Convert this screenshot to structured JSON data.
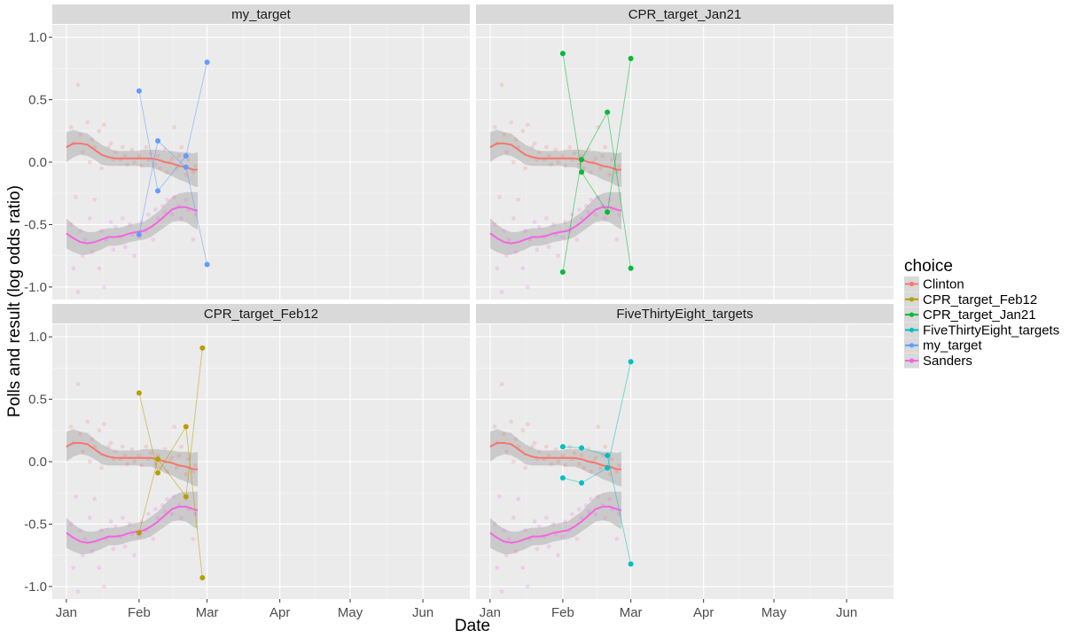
{
  "chart_data": {
    "type": "scatter",
    "xlabel": "Date",
    "ylabel": "Polls and result (log odds ratio)",
    "x_ticks": [
      "Jan",
      "Feb",
      "Mar",
      "Apr",
      "May",
      "Jun"
    ],
    "x_tick_dates": [
      "2016-01-01",
      "2016-02-01",
      "2016-03-01",
      "2016-04-01",
      "2016-05-01",
      "2016-06-01"
    ],
    "xlim": [
      "2015-12-26",
      "2016-06-21"
    ],
    "y_ticks": [
      "1.0",
      "0.5",
      "0.0",
      "-0.5",
      "-1.0"
    ],
    "ylim": [
      -1.1,
      1.1
    ],
    "grid": true,
    "legend": {
      "title": "choice",
      "position": "right",
      "entries": [
        {
          "name": "Clinton",
          "color": "#F8766D"
        },
        {
          "name": "CPR_target_Feb12",
          "color": "#B79F00"
        },
        {
          "name": "CPR_target_Jan21",
          "color": "#00BA38"
        },
        {
          "name": "FiveThirtyEight_targets",
          "color": "#00BFC4"
        },
        {
          "name": "my_target",
          "color": "#619CFF"
        },
        {
          "name": "Sanders",
          "color": "#F564E3"
        }
      ]
    },
    "polls": {
      "clinton_points": [
        [
          "2016-01-03",
          0.28
        ],
        [
          "2016-01-04",
          0.15
        ],
        [
          "2016-01-06",
          0.62
        ],
        [
          "2016-01-07",
          0.22
        ],
        [
          "2016-01-08",
          0.08
        ],
        [
          "2016-01-10",
          0.32
        ],
        [
          "2016-01-11",
          0.0
        ],
        [
          "2016-01-12",
          0.18
        ],
        [
          "2016-01-13",
          0.12
        ],
        [
          "2016-01-15",
          0.25
        ],
        [
          "2016-01-16",
          -0.05
        ],
        [
          "2016-01-17",
          0.3
        ],
        [
          "2016-01-19",
          0.12
        ],
        [
          "2016-01-20",
          0.15
        ],
        [
          "2016-01-21",
          0.02
        ],
        [
          "2016-01-22",
          0.08
        ],
        [
          "2016-01-24",
          0.02
        ],
        [
          "2016-01-25",
          0.12
        ],
        [
          "2016-01-26",
          0.05
        ],
        [
          "2016-01-27",
          -0.02
        ],
        [
          "2016-01-29",
          0.1
        ],
        [
          "2016-01-30",
          0.0
        ],
        [
          "2016-02-01",
          0.05
        ],
        [
          "2016-02-02",
          -0.03
        ],
        [
          "2016-02-04",
          0.12
        ],
        [
          "2016-02-05",
          0.02
        ],
        [
          "2016-02-06",
          0.07
        ],
        [
          "2016-02-08",
          -0.02
        ],
        [
          "2016-02-09",
          0.05
        ],
        [
          "2016-02-10",
          -0.05
        ],
        [
          "2016-02-12",
          0.1
        ],
        [
          "2016-02-13",
          -0.08
        ],
        [
          "2016-02-14",
          0.0
        ],
        [
          "2016-02-15",
          0.03
        ],
        [
          "2016-02-16",
          0.28
        ],
        [
          "2016-02-17",
          -0.05
        ],
        [
          "2016-02-18",
          0.05
        ],
        [
          "2016-02-19",
          0.12
        ],
        [
          "2016-02-21",
          -0.1
        ],
        [
          "2016-02-22",
          0.02
        ],
        [
          "2016-02-24",
          -0.08
        ],
        [
          "2016-02-25",
          -0.03
        ]
      ],
      "sanders_points": [
        [
          "2016-01-03",
          -0.5
        ],
        [
          "2016-01-04",
          -0.85
        ],
        [
          "2016-01-05",
          -0.28
        ],
        [
          "2016-01-06",
          -1.04
        ],
        [
          "2016-01-07",
          -0.55
        ],
        [
          "2016-01-08",
          -0.75
        ],
        [
          "2016-01-09",
          -0.62
        ],
        [
          "2016-01-11",
          -0.45
        ],
        [
          "2016-01-12",
          -0.72
        ],
        [
          "2016-01-13",
          -0.3
        ],
        [
          "2016-01-15",
          -0.85
        ],
        [
          "2016-01-16",
          -0.55
        ],
        [
          "2016-01-17",
          -1.0
        ],
        [
          "2016-01-18",
          -0.62
        ],
        [
          "2016-01-20",
          -0.48
        ],
        [
          "2016-01-21",
          -0.7
        ],
        [
          "2016-01-22",
          -0.52
        ],
        [
          "2016-01-24",
          -0.6
        ],
        [
          "2016-01-25",
          -0.45
        ],
        [
          "2016-01-26",
          -0.68
        ],
        [
          "2016-01-28",
          -0.5
        ],
        [
          "2016-01-29",
          -0.58
        ],
        [
          "2016-01-30",
          -0.75
        ],
        [
          "2016-02-01",
          -0.6
        ],
        [
          "2016-02-02",
          -0.48
        ],
        [
          "2016-02-04",
          -0.55
        ],
        [
          "2016-02-05",
          -0.42
        ],
        [
          "2016-02-07",
          -0.62
        ],
        [
          "2016-02-08",
          -0.38
        ],
        [
          "2016-02-09",
          -0.45
        ],
        [
          "2016-02-11",
          -0.35
        ],
        [
          "2016-02-12",
          -0.4
        ],
        [
          "2016-02-13",
          -0.3
        ],
        [
          "2016-02-15",
          -0.42
        ],
        [
          "2016-02-16",
          -0.28
        ],
        [
          "2016-02-18",
          -0.35
        ],
        [
          "2016-02-19",
          -0.45
        ],
        [
          "2016-02-21",
          -0.3
        ],
        [
          "2016-02-22",
          -0.38
        ],
        [
          "2016-02-24",
          -0.62
        ],
        [
          "2016-02-25",
          -0.42
        ]
      ],
      "clinton_smooth": {
        "x": [
          "2016-01-01",
          "2016-01-04",
          "2016-01-07",
          "2016-01-10",
          "2016-01-13",
          "2016-01-16",
          "2016-01-19",
          "2016-01-22",
          "2016-01-25",
          "2016-01-28",
          "2016-01-31",
          "2016-02-03",
          "2016-02-06",
          "2016-02-09",
          "2016-02-12",
          "2016-02-15",
          "2016-02-18",
          "2016-02-21",
          "2016-02-24",
          "2016-02-26"
        ],
        "y": [
          0.12,
          0.15,
          0.15,
          0.14,
          0.1,
          0.06,
          0.04,
          0.03,
          0.03,
          0.03,
          0.03,
          0.03,
          0.03,
          0.02,
          0.0,
          -0.01,
          -0.03,
          -0.04,
          -0.06,
          -0.06
        ],
        "se": [
          0.12,
          0.11,
          0.09,
          0.09,
          0.08,
          0.08,
          0.07,
          0.06,
          0.06,
          0.06,
          0.06,
          0.07,
          0.07,
          0.08,
          0.09,
          0.1,
          0.11,
          0.12,
          0.13,
          0.14
        ]
      },
      "sanders_smooth": {
        "x": [
          "2016-01-01",
          "2016-01-04",
          "2016-01-07",
          "2016-01-10",
          "2016-01-13",
          "2016-01-16",
          "2016-01-19",
          "2016-01-22",
          "2016-01-25",
          "2016-01-28",
          "2016-01-31",
          "2016-02-03",
          "2016-02-06",
          "2016-02-09",
          "2016-02-12",
          "2016-02-15",
          "2016-02-18",
          "2016-02-21",
          "2016-02-24",
          "2016-02-26"
        ],
        "y": [
          -0.57,
          -0.61,
          -0.64,
          -0.65,
          -0.64,
          -0.62,
          -0.6,
          -0.6,
          -0.59,
          -0.57,
          -0.56,
          -0.55,
          -0.52,
          -0.48,
          -0.43,
          -0.38,
          -0.36,
          -0.36,
          -0.38,
          -0.39
        ],
        "se": [
          0.12,
          0.11,
          0.1,
          0.09,
          0.08,
          0.08,
          0.07,
          0.07,
          0.07,
          0.07,
          0.07,
          0.07,
          0.08,
          0.08,
          0.09,
          0.1,
          0.11,
          0.12,
          0.14,
          0.15
        ]
      }
    },
    "panels": [
      {
        "title": "my_target",
        "color": "#619CFF",
        "clinton": [
          [
            "2016-02-01",
            -0.58
          ],
          [
            "2016-02-09",
            0.17
          ],
          [
            "2016-02-21",
            -0.04
          ],
          [
            "2016-03-01",
            -0.82
          ]
        ],
        "sanders": [
          [
            "2016-02-01",
            0.57
          ],
          [
            "2016-02-09",
            -0.23
          ],
          [
            "2016-02-21",
            0.05
          ],
          [
            "2016-03-01",
            0.8
          ]
        ]
      },
      {
        "title": "CPR_target_Jan21",
        "color": "#00BA38",
        "clinton": [
          [
            "2016-02-01",
            0.87
          ],
          [
            "2016-02-09",
            -0.08
          ],
          [
            "2016-02-20",
            -0.4
          ],
          [
            "2016-03-01",
            0.83
          ]
        ],
        "sanders": [
          [
            "2016-02-01",
            -0.88
          ],
          [
            "2016-02-09",
            0.02
          ],
          [
            "2016-02-20",
            0.4
          ],
          [
            "2016-03-01",
            -0.85
          ]
        ]
      },
      {
        "title": "CPR_target_Feb12",
        "color": "#B79F00",
        "clinton": [
          [
            "2016-02-01",
            0.55
          ],
          [
            "2016-02-09",
            -0.09
          ],
          [
            "2016-02-21",
            0.28
          ],
          [
            "2016-02-28",
            -0.93
          ]
        ],
        "sanders": [
          [
            "2016-02-01",
            -0.57
          ],
          [
            "2016-02-09",
            0.02
          ],
          [
            "2016-02-21",
            -0.28
          ],
          [
            "2016-02-28",
            0.91
          ]
        ]
      },
      {
        "title": "FiveThirtyEight_targets",
        "color": "#00BFC4",
        "clinton": [
          [
            "2016-02-01",
            0.12
          ],
          [
            "2016-02-09",
            0.11
          ],
          [
            "2016-02-20",
            0.05
          ],
          [
            "2016-03-01",
            -0.82
          ]
        ],
        "sanders": [
          [
            "2016-02-01",
            -0.13
          ],
          [
            "2016-02-09",
            -0.17
          ],
          [
            "2016-02-20",
            -0.05
          ],
          [
            "2016-03-01",
            0.8
          ]
        ]
      }
    ]
  }
}
